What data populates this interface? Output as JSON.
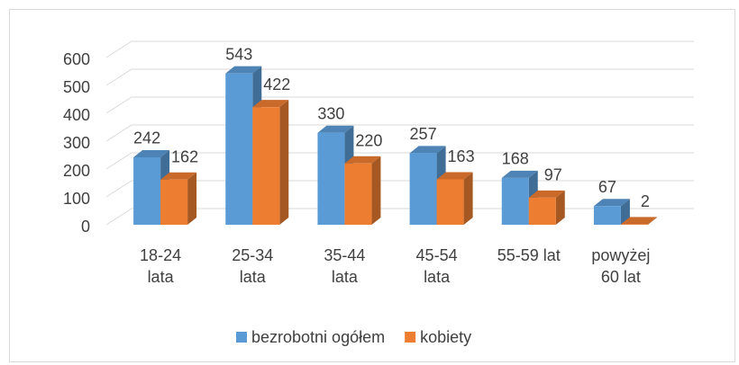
{
  "chart_data": {
    "type": "bar3d",
    "categories": [
      "18-24 lata",
      "25-34 lata",
      "35-44 lata",
      "45-54 lata",
      "55-59 lat",
      "powyżej 60 lat"
    ],
    "series": [
      {
        "name": "bezrobotni ogółem",
        "color": "#5b9bd5",
        "values": [
          242,
          543,
          330,
          257,
          168,
          67
        ]
      },
      {
        "name": "kobiety",
        "color": "#ed7d31",
        "values": [
          162,
          422,
          220,
          163,
          97,
          2
        ]
      }
    ],
    "ylim": [
      0,
      600
    ],
    "yticks": [
      0,
      100,
      200,
      300,
      400,
      500,
      600
    ],
    "grid": true,
    "legend": "bottom"
  }
}
